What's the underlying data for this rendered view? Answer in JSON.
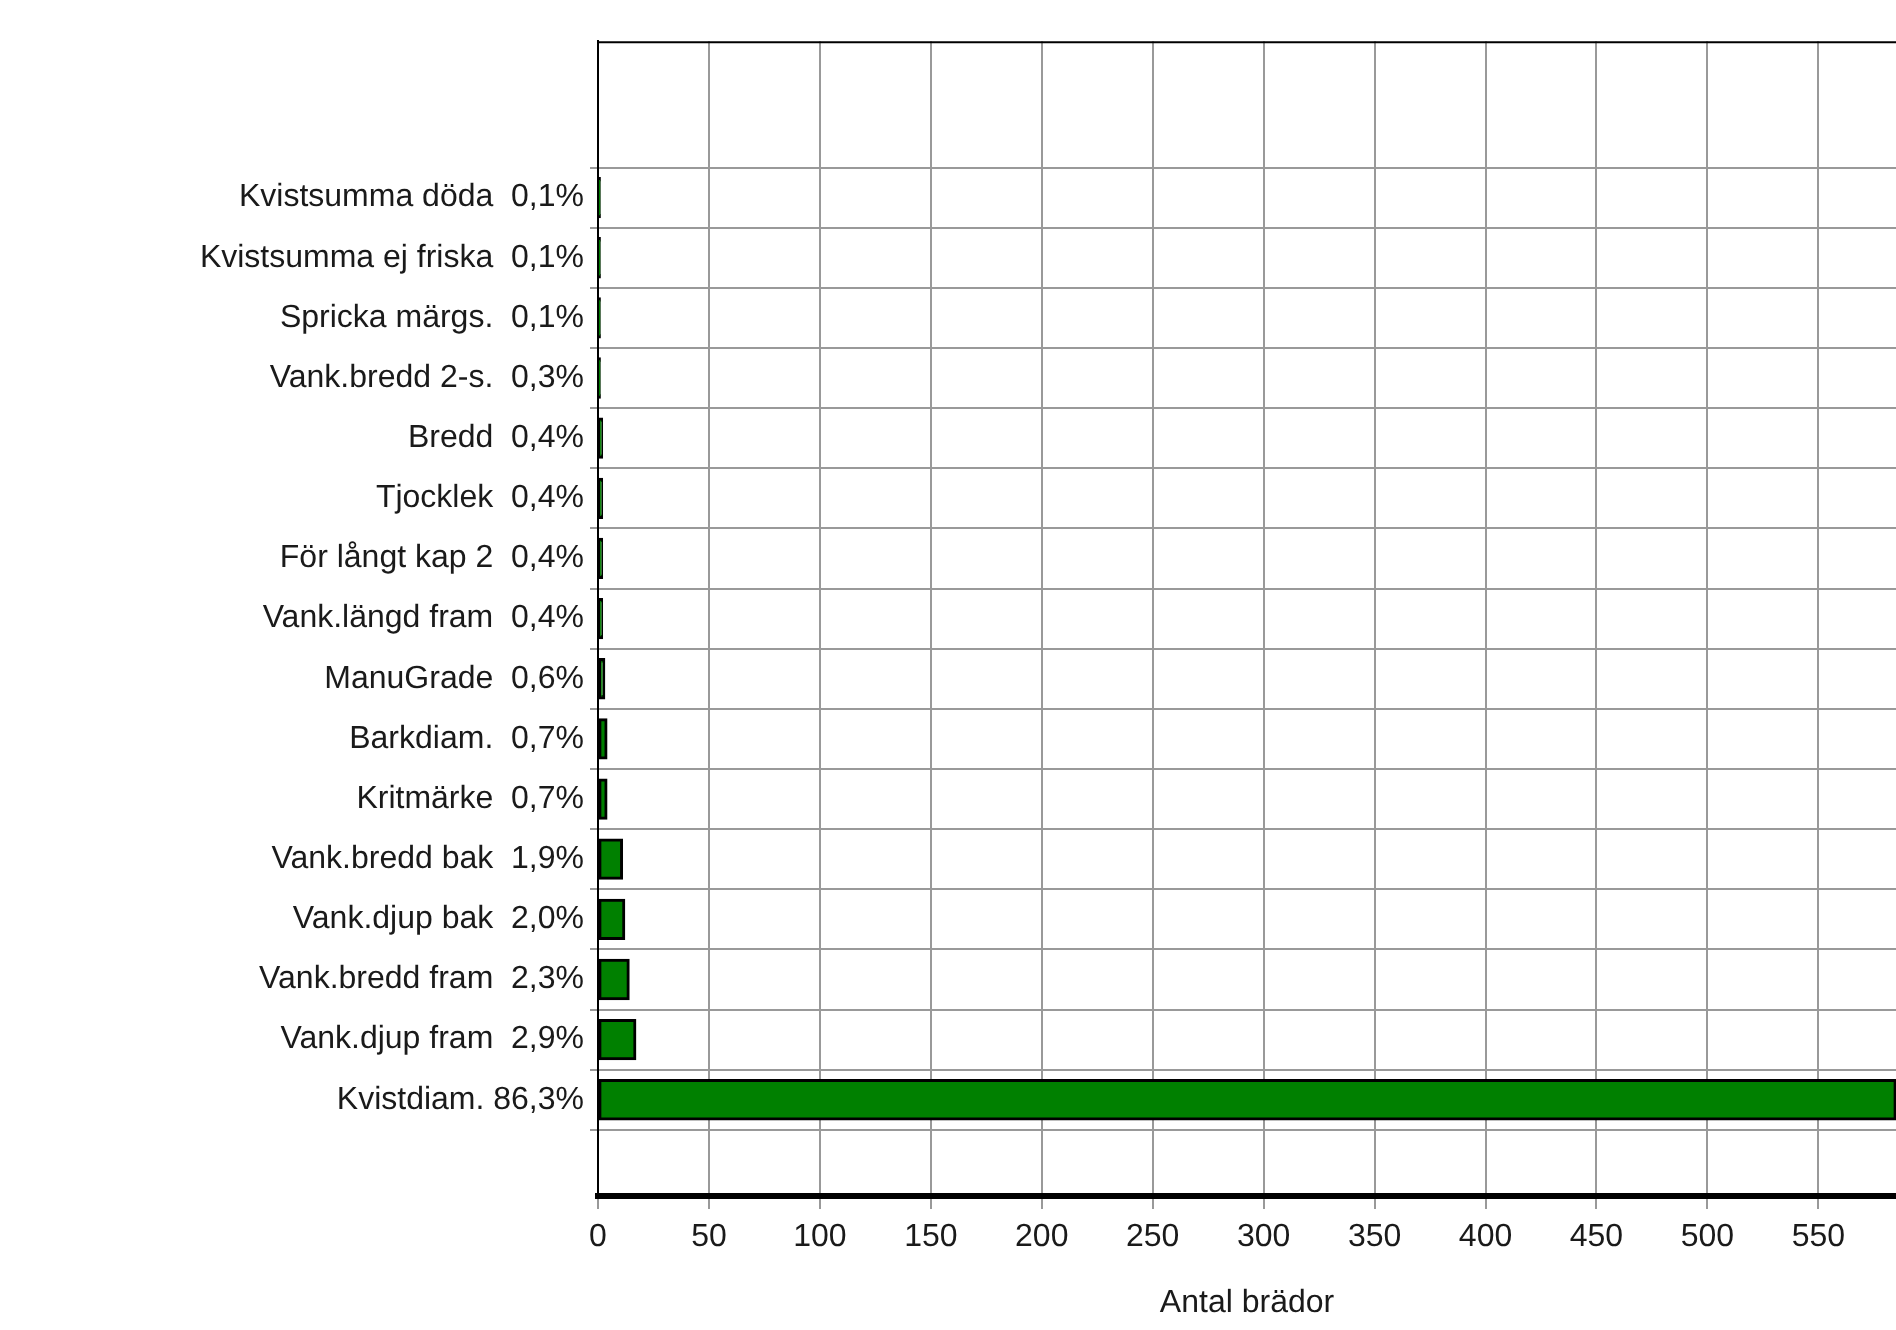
{
  "chart_data": {
    "type": "bar",
    "orientation": "horizontal",
    "xlabel": "Antal brädor",
    "categories": [
      "Kvistsumma döda  0,1%",
      "Kvistsumma ej friska  0,1%",
      "Spricka märgs.  0,1%",
      "Vank.bredd 2-s.  0,3%",
      "Bredd  0,4%",
      "Tjocklek  0,4%",
      "För långt kap 2  0,4%",
      "Vank.längd fram  0,4%",
      "ManuGrade  0,6%",
      "Barkdiam.  0,7%",
      "Kritmärke  0,7%",
      "Vank.bredd bak  1,9%",
      "Vank.djup bak  2,0%",
      "Vank.bredd fram  2,3%",
      "Vank.djup fram  2,9%",
      "Kvistdiam. 86,3%"
    ],
    "values": [
      1,
      1,
      1,
      1,
      2,
      2,
      2,
      2,
      3,
      4,
      4,
      11,
      12,
      14,
      17,
      585
    ],
    "color": "#008000",
    "xlim": [
      0,
      585
    ],
    "xticks": [
      0,
      50,
      100,
      150,
      200,
      250,
      300,
      350,
      400,
      450,
      500,
      550
    ],
    "grid": true,
    "legend": false
  }
}
